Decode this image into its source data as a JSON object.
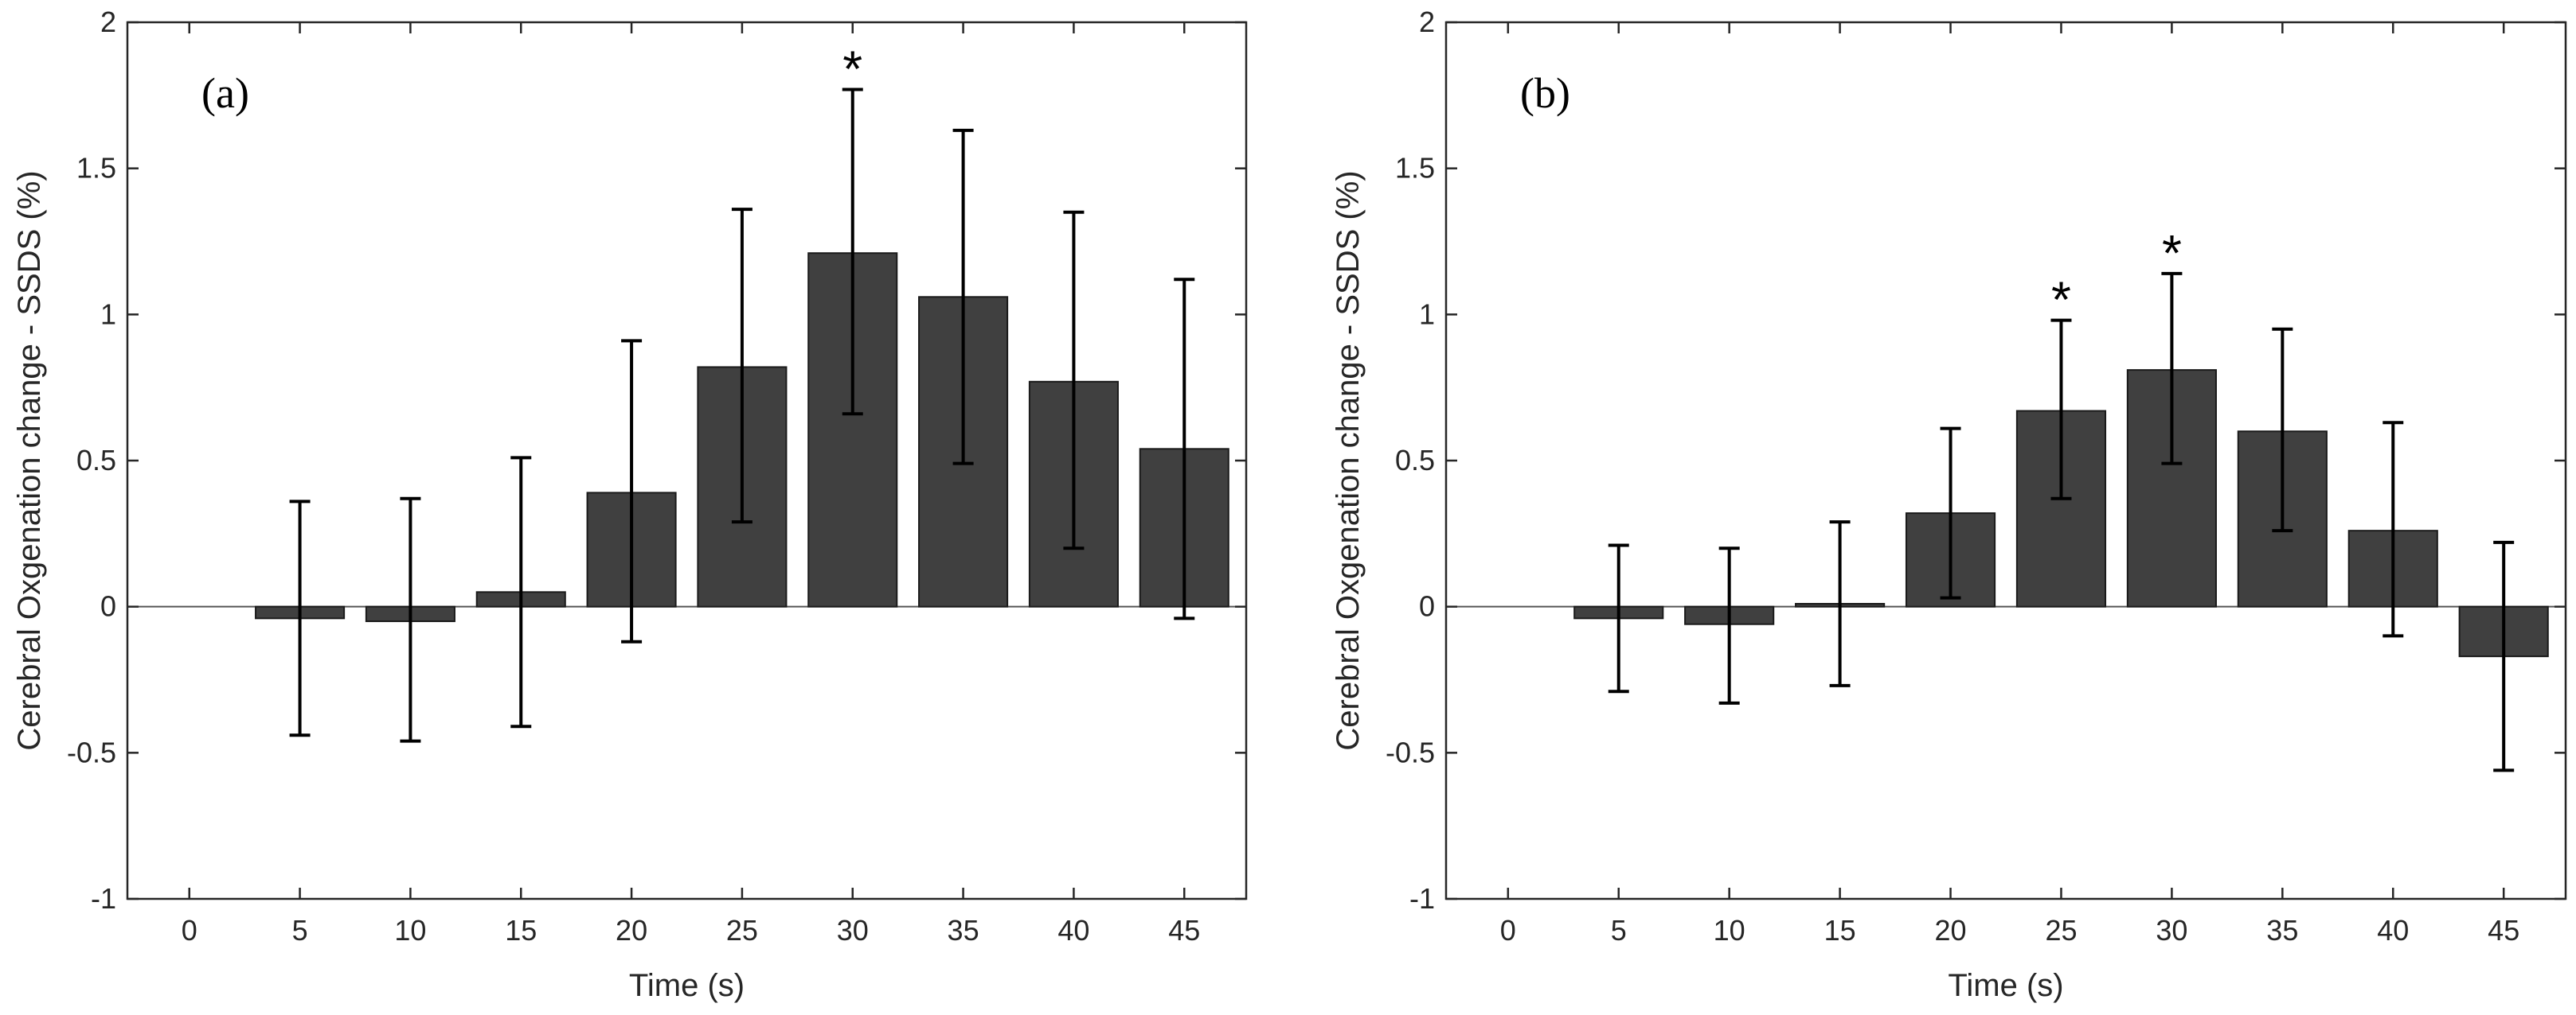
{
  "colors": {
    "bar_fill": "#404040",
    "bar_edge": "#1a1a1a",
    "error_bar": "#000000",
    "axes": "#262626",
    "zero_line": "#555555",
    "background": "#ffffff"
  },
  "chart_data": [
    {
      "type": "bar",
      "panel_label": "(a)",
      "xlabel": "Time (s)",
      "ylabel": "Cerebral Oxgenation change - SSDS (%)",
      "ylim": [
        -1,
        2
      ],
      "xlim": [
        -2.8,
        47.8
      ],
      "yticks": [
        -1,
        -0.5,
        0,
        0.5,
        1,
        1.5,
        2
      ],
      "ytick_labels": [
        "-1",
        "-0.5",
        "0",
        "0.5",
        "1",
        "1.5",
        "2"
      ],
      "categories": [
        "0",
        "5",
        "10",
        "15",
        "20",
        "25",
        "30",
        "35",
        "40",
        "45"
      ],
      "x": [
        0,
        5,
        10,
        15,
        20,
        25,
        30,
        35,
        40,
        45
      ],
      "values": [
        0,
        -0.04,
        -0.05,
        0.05,
        0.39,
        0.82,
        1.21,
        1.06,
        0.77,
        0.54
      ],
      "err_low": [
        0,
        -0.44,
        -0.46,
        -0.41,
        -0.12,
        0.29,
        0.66,
        0.49,
        0.2,
        -0.04
      ],
      "err_high": [
        0,
        0.36,
        0.37,
        0.51,
        0.91,
        1.36,
        1.77,
        1.63,
        1.35,
        1.12
      ],
      "significant": [
        false,
        false,
        false,
        false,
        false,
        false,
        true,
        false,
        false,
        false
      ],
      "sig_symbol": "*",
      "grid": false
    },
    {
      "type": "bar",
      "panel_label": "(b)",
      "xlabel": "Time (s)",
      "ylabel": "Cerebral Oxgenation change - SSDS (%)",
      "ylim": [
        -1,
        2
      ],
      "xlim": [
        -2.8,
        47.8
      ],
      "yticks": [
        -1,
        -0.5,
        0,
        0.5,
        1,
        1.5,
        2
      ],
      "ytick_labels": [
        "-1",
        "-0.5",
        "0",
        "0.5",
        "1",
        "1.5",
        "2"
      ],
      "categories": [
        "0",
        "5",
        "10",
        "15",
        "20",
        "25",
        "30",
        "35",
        "40",
        "45"
      ],
      "x": [
        0,
        5,
        10,
        15,
        20,
        25,
        30,
        35,
        40,
        45
      ],
      "values": [
        0,
        -0.04,
        -0.06,
        0.01,
        0.32,
        0.67,
        0.81,
        0.6,
        0.26,
        -0.17
      ],
      "err_low": [
        0,
        -0.29,
        -0.33,
        -0.27,
        0.03,
        0.37,
        0.49,
        0.26,
        -0.1,
        -0.56
      ],
      "err_high": [
        0,
        0.21,
        0.2,
        0.29,
        0.61,
        0.98,
        1.14,
        0.95,
        0.63,
        0.22
      ],
      "significant": [
        false,
        false,
        false,
        false,
        false,
        true,
        true,
        false,
        false,
        false
      ],
      "sig_symbol": "*",
      "grid": false
    }
  ]
}
